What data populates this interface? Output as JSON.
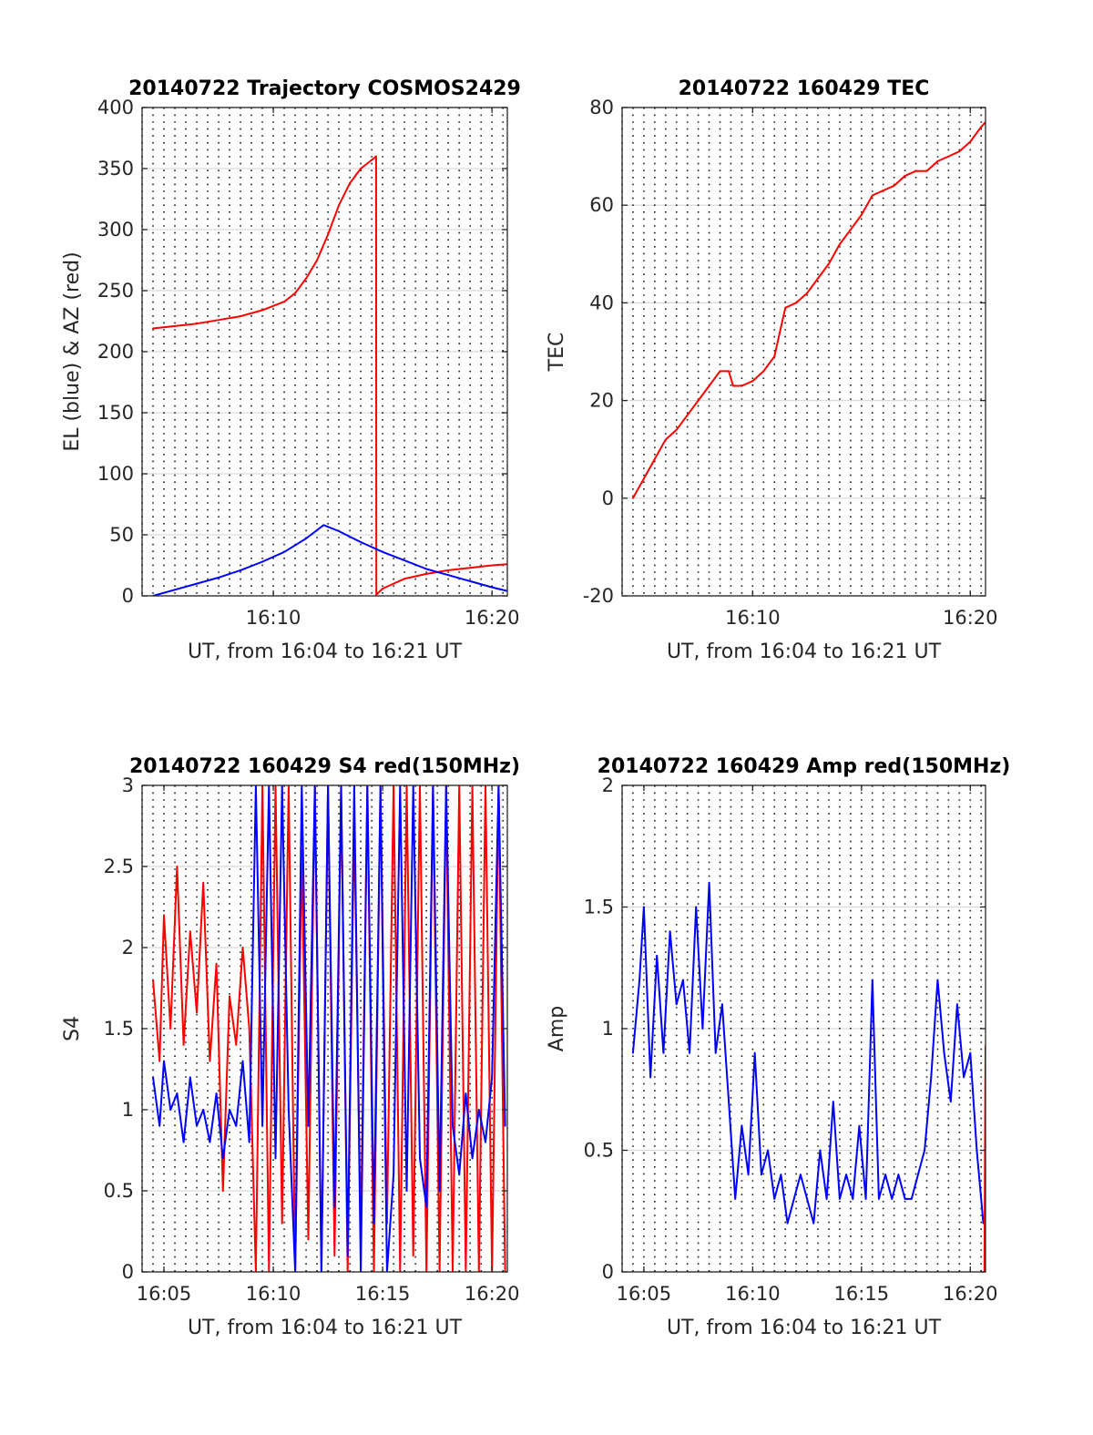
{
  "figure": {
    "background": "#ffffff",
    "axis_color": "#262626",
    "grid_color": "#d9d9d9"
  },
  "chart_data": [
    {
      "id": "trajectory",
      "type": "line",
      "title": "20140722 Trajectory COSMOS2429",
      "xlabel": "UT, from 16:04 to 16:21 UT",
      "ylabel": "EL (blue) & AZ (red)",
      "x_unit": "minutes after 16:00 UT",
      "xlim": [
        4.0,
        20.7
      ],
      "ylim": [
        0,
        400
      ],
      "x_ticks": [
        10,
        20
      ],
      "x_tick_labels": [
        "16:10",
        "16:20"
      ],
      "y_ticks": [
        0,
        50,
        100,
        150,
        200,
        250,
        300,
        350,
        400
      ],
      "y_tick_labels": [
        "0",
        "50",
        "100",
        "150",
        "200",
        "250",
        "300",
        "350",
        "400"
      ],
      "grid": true,
      "minor_x_grid_dotted": true,
      "series": [
        {
          "color": "#ff0000",
          "x": [
            4.5,
            5.5,
            6.5,
            7.5,
            8.5,
            9.5,
            10.5,
            11.0,
            11.5,
            12.0,
            12.5,
            13.0,
            13.5,
            14.0,
            14.5,
            14.7,
            14.71,
            15.0,
            15.5,
            16.0,
            17.0,
            18.0,
            19.0,
            20.0,
            20.7
          ],
          "y": [
            219,
            221,
            223,
            226,
            229,
            234,
            241,
            248,
            260,
            275,
            296,
            320,
            338,
            350,
            357,
            360,
            1,
            6,
            10,
            14,
            18,
            21,
            23,
            25,
            26
          ]
        },
        {
          "color": "#0000ff",
          "x": [
            4.5,
            5.5,
            6.5,
            7.5,
            8.5,
            9.5,
            10.5,
            11.5,
            12.3,
            13.0,
            14.0,
            15.0,
            16.0,
            17.0,
            18.0,
            19.0,
            20.0,
            20.7
          ],
          "y": [
            0,
            5,
            10,
            15,
            21,
            28,
            36,
            47,
            58,
            53,
            44,
            36,
            29,
            22,
            17,
            12,
            7,
            4
          ]
        }
      ]
    },
    {
      "id": "tec",
      "type": "line",
      "title": "20140722 160429 TEC",
      "xlabel": "UT, from 16:04 to 16:21 UT",
      "ylabel": "TEC",
      "x_unit": "minutes after 16:00 UT",
      "xlim": [
        4.0,
        20.7
      ],
      "ylim": [
        -20,
        80
      ],
      "x_ticks": [
        10,
        20
      ],
      "x_tick_labels": [
        "16:10",
        "16:20"
      ],
      "y_ticks": [
        -20,
        0,
        20,
        40,
        60,
        80
      ],
      "y_tick_labels": [
        "-20",
        "0",
        "20",
        "40",
        "60",
        "80"
      ],
      "grid": true,
      "minor_x_grid_dotted": true,
      "series": [
        {
          "color": "#ff0000",
          "x": [
            4.5,
            5.0,
            5.5,
            6.0,
            6.5,
            7.0,
            7.5,
            8.0,
            8.5,
            8.9,
            9.1,
            9.5,
            10.0,
            10.5,
            11.0,
            11.3,
            11.5,
            12.0,
            12.5,
            13.0,
            13.5,
            14.0,
            14.5,
            15.0,
            15.5,
            16.0,
            16.5,
            17.0,
            17.5,
            18.0,
            18.5,
            19.0,
            19.5,
            20.0,
            20.5,
            20.7
          ],
          "y": [
            0,
            4,
            8,
            12,
            14,
            17,
            20,
            23,
            26,
            26,
            23,
            23,
            24,
            26,
            29,
            35,
            39,
            40,
            42,
            45,
            48,
            52,
            55,
            58,
            62,
            63,
            64,
            66,
            67,
            67,
            69,
            70,
            71,
            73,
            76,
            77
          ]
        }
      ]
    },
    {
      "id": "s4",
      "type": "line",
      "title": "20140722 160429 S4 red(150MHz)",
      "xlabel": "UT, from 16:04 to 16:21 UT",
      "ylabel": "S4",
      "x_unit": "minutes after 16:00 UT",
      "xlim": [
        4.0,
        20.7
      ],
      "ylim": [
        0,
        3
      ],
      "x_ticks": [
        5,
        10,
        15,
        20
      ],
      "x_tick_labels": [
        "16:05",
        "16:10",
        "16:15",
        "16:20"
      ],
      "y_ticks": [
        0,
        0.5,
        1,
        1.5,
        2,
        2.5,
        3
      ],
      "y_tick_labels": [
        "0",
        "0.5",
        "1",
        "1.5",
        "2",
        "2.5",
        "3"
      ],
      "grid": true,
      "minor_x_grid_dotted": true,
      "series": [
        {
          "color": "#ff0000",
          "x": [
            4.5,
            4.8,
            5.0,
            5.3,
            5.6,
            5.9,
            6.2,
            6.5,
            6.8,
            7.1,
            7.4,
            7.7,
            8.0,
            8.3,
            8.6,
            8.9,
            9.2,
            9.5,
            9.8,
            10.1,
            10.4,
            10.7,
            11.0,
            11.3,
            11.6,
            11.9,
            12.2,
            12.5,
            12.8,
            13.1,
            13.4,
            13.7,
            14.0,
            14.3,
            14.6,
            14.9,
            15.2,
            15.5,
            15.8,
            16.1,
            16.4,
            16.7,
            17.0,
            17.3,
            17.6,
            17.9,
            18.2,
            18.5,
            18.8,
            19.1,
            19.4,
            19.7,
            20.0,
            20.3,
            20.6
          ],
          "y": [
            1.8,
            1.3,
            2.2,
            1.5,
            2.5,
            1.4,
            2.1,
            1.6,
            2.4,
            1.3,
            1.9,
            0.5,
            1.7,
            1.4,
            2.0,
            1.5,
            0,
            3,
            0,
            3,
            0.3,
            3,
            0,
            2.6,
            0.2,
            3,
            0,
            3,
            0.1,
            3,
            0,
            2.8,
            0.2,
            3,
            0,
            3,
            0.3,
            3,
            0,
            3,
            0.1,
            3,
            0,
            3,
            0,
            3,
            0,
            3,
            0,
            3,
            0,
            3,
            0,
            3,
            0
          ]
        },
        {
          "color": "#0000ff",
          "x": [
            4.5,
            4.8,
            5.0,
            5.3,
            5.6,
            5.9,
            6.2,
            6.5,
            6.8,
            7.1,
            7.4,
            7.7,
            8.0,
            8.3,
            8.6,
            8.9,
            9.2,
            9.5,
            9.8,
            10.1,
            10.4,
            10.7,
            11.0,
            11.3,
            11.6,
            11.9,
            12.2,
            12.5,
            12.8,
            13.1,
            13.4,
            13.7,
            14.0,
            14.3,
            14.6,
            14.9,
            15.2,
            15.5,
            15.8,
            16.1,
            16.4,
            16.7,
            17.0,
            17.3,
            17.6,
            17.9,
            18.2,
            18.5,
            18.8,
            19.1,
            19.4,
            19.7,
            20.0,
            20.3,
            20.6
          ],
          "y": [
            1.2,
            0.9,
            1.3,
            1.0,
            1.1,
            0.8,
            1.2,
            0.9,
            1.0,
            0.8,
            1.1,
            0.7,
            1.0,
            0.9,
            1.3,
            0.8,
            3,
            0.9,
            3,
            0.7,
            3,
            1.0,
            0,
            3,
            0.9,
            3,
            0,
            3,
            0.4,
            3,
            0.1,
            3,
            0,
            3,
            0.3,
            3,
            0,
            0.6,
            3,
            0.5,
            3,
            0.7,
            0.4,
            3,
            0.5,
            3,
            0.9,
            0.6,
            1.1,
            0.7,
            1.0,
            0.8,
            1.2,
            3,
            0.9
          ]
        }
      ]
    },
    {
      "id": "amp",
      "type": "line",
      "title": "20140722 160429 Amp red(150MHz)",
      "xlabel": "UT, from 16:04 to 16:21 UT",
      "ylabel": "Amp",
      "x_unit": "minutes after 16:00 UT",
      "xlim": [
        4.0,
        20.7
      ],
      "ylim": [
        0,
        2
      ],
      "x_ticks": [
        5,
        10,
        15,
        20
      ],
      "x_tick_labels": [
        "16:05",
        "16:10",
        "16:15",
        "16:20"
      ],
      "y_ticks": [
        0,
        0.5,
        1,
        1.5,
        2
      ],
      "y_tick_labels": [
        "0",
        "0.5",
        "1",
        "1.5",
        "2"
      ],
      "grid": true,
      "minor_x_grid_dotted": true,
      "series": [
        {
          "color": "#0000ff",
          "x": [
            4.5,
            4.8,
            5.0,
            5.3,
            5.6,
            5.9,
            6.2,
            6.5,
            6.8,
            7.1,
            7.4,
            7.7,
            8.0,
            8.3,
            8.6,
            8.9,
            9.2,
            9.5,
            9.8,
            10.1,
            10.4,
            10.7,
            11.0,
            11.3,
            11.6,
            11.9,
            12.2,
            12.5,
            12.8,
            13.1,
            13.4,
            13.7,
            14.0,
            14.3,
            14.6,
            14.9,
            15.2,
            15.5,
            15.8,
            16.1,
            16.4,
            16.7,
            17.0,
            17.3,
            17.6,
            17.9,
            18.2,
            18.5,
            18.8,
            19.1,
            19.4,
            19.7,
            20.0,
            20.3,
            20.6
          ],
          "y": [
            0.9,
            1.2,
            1.5,
            0.8,
            1.3,
            0.9,
            1.4,
            1.1,
            1.2,
            0.9,
            1.5,
            1.0,
            1.6,
            0.9,
            1.1,
            0.7,
            0.3,
            0.6,
            0.4,
            0.9,
            0.4,
            0.5,
            0.3,
            0.4,
            0.2,
            0.3,
            0.4,
            0.3,
            0.2,
            0.5,
            0.3,
            0.7,
            0.3,
            0.4,
            0.3,
            0.6,
            0.3,
            1.2,
            0.3,
            0.4,
            0.3,
            0.4,
            0.3,
            0.3,
            0.4,
            0.5,
            0.8,
            1.2,
            0.9,
            0.7,
            1.1,
            0.8,
            0.9,
            0.5,
            0.2
          ]
        },
        {
          "color": "#ff0000",
          "x": [
            20.65,
            20.7
          ],
          "y": [
            0.0,
            0.93
          ]
        }
      ]
    }
  ]
}
